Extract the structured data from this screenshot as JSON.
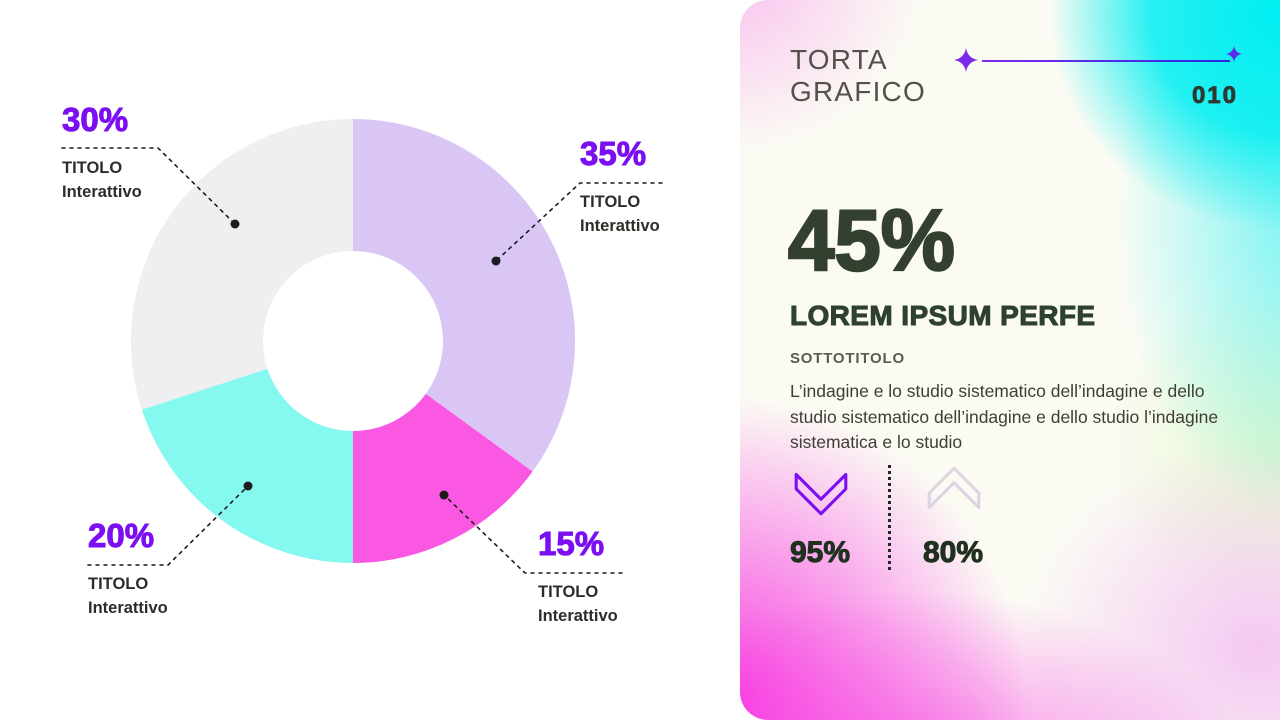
{
  "theme": {
    "accent_purple": "#7b0ff2",
    "dark_green": "#33402f",
    "magenta": "#fa57e3",
    "cyan": "#85f8f0",
    "lavender": "#d9c6f4",
    "light_gray": "#efeef0"
  },
  "chart_data": {
    "type": "pie",
    "donut": true,
    "start_angle_deg": 0,
    "title": "TORTA GRAFICO",
    "legend_position": "callouts",
    "segments": [
      {
        "label": "TITOLO Interattivo",
        "value": 35,
        "color": "#d9c6f4"
      },
      {
        "label": "TITOLO Interattivo",
        "value": 15,
        "color": "#fa57e3"
      },
      {
        "label": "TITOLO Interattivo",
        "value": 20,
        "color": "#85f8f0"
      },
      {
        "label": "TITOLO Interattivo",
        "value": 30,
        "color": "#efeef0"
      }
    ]
  },
  "callouts": [
    {
      "pct": "30%",
      "line1": "TITOLO",
      "line2": "Interattivo"
    },
    {
      "pct": "35%",
      "line1": "TITOLO",
      "line2": "Interattivo"
    },
    {
      "pct": "20%",
      "line1": "TITOLO",
      "line2": "Interattivo"
    },
    {
      "pct": "15%",
      "line1": "TITOLO",
      "line2": "Interattivo"
    }
  ],
  "panel": {
    "kicker_line1": "TORTA",
    "kicker_line2": "GRAFICO",
    "page_number": "010",
    "big_stat": "45%",
    "headline": "LOREM IPSUM PERFE",
    "subtitle": "SOTTOTITOLO",
    "body": "L’indagine e lo studio sistematico dell’indagine e dello studio sistematico dell’indagine e dello studio l’indagine sistematica e lo studio",
    "stat_down": "95%",
    "stat_up": "80%"
  }
}
